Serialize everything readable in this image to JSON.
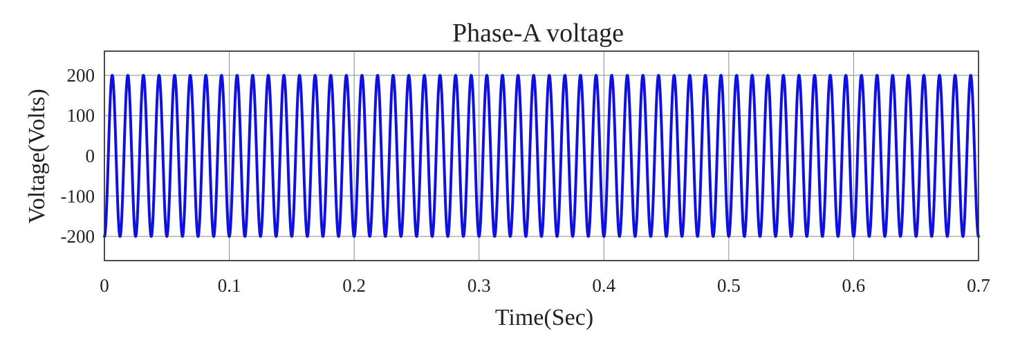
{
  "chart_data": {
    "type": "line",
    "title": "Phase-A voltage",
    "xlabel": "Time(Sec)",
    "ylabel": "Voltage(Volts)",
    "xlim": [
      0,
      0.7
    ],
    "ylim": [
      -260,
      260
    ],
    "x_ticks": [
      0,
      0.1,
      0.2,
      0.3,
      0.4,
      0.5,
      0.6,
      0.7
    ],
    "x_tick_labels": [
      "0",
      "0.1",
      "0.2",
      "0.3",
      "0.4",
      "0.5",
      "0.6",
      "0.7"
    ],
    "y_ticks": [
      200,
      100,
      0,
      -100,
      -200
    ],
    "y_tick_labels": [
      "200",
      "100",
      "0",
      "-100",
      "-200"
    ],
    "grid": true,
    "series": [
      {
        "waveform": "sine",
        "amplitude": 200,
        "frequency_hz": 80,
        "phase_deg": -90,
        "color": "#1010e0"
      }
    ]
  }
}
